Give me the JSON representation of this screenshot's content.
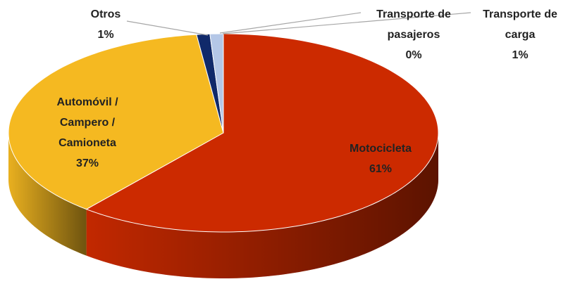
{
  "chart_data": {
    "type": "pie",
    "categories": [
      "Motocicleta",
      "Automóvil / Campero / Camioneta",
      "Otros",
      "Transporte de pasajeros",
      "Transporte de carga"
    ],
    "values": [
      61,
      37,
      1,
      0,
      1
    ],
    "value_labels": [
      "61%",
      "37%",
      "1%",
      "0%",
      "1%"
    ],
    "colors": [
      "#cc2a00",
      "#f5b921",
      "#10296a",
      "#8ea6d6",
      "#b4c7e7"
    ]
  }
}
